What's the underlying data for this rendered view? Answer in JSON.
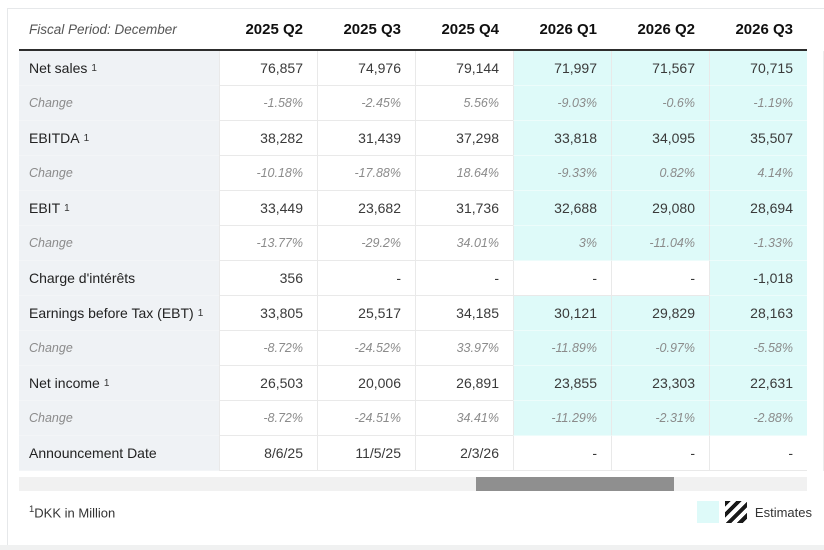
{
  "header": {
    "fiscal_period_label": "Fiscal Period: December",
    "columns": [
      "2025 Q2",
      "2025 Q3",
      "2025 Q4",
      "2026 Q1",
      "2026 Q2",
      "2026 Q3"
    ]
  },
  "table": {
    "rows": [
      {
        "label": "Net sales",
        "sup": "1",
        "style": "main",
        "values": [
          "76,857",
          "74,976",
          "79,144",
          "71,997",
          "71,567",
          "70,715"
        ],
        "estimates": [
          false,
          false,
          false,
          true,
          true,
          true
        ]
      },
      {
        "label": "Change",
        "style": "change",
        "values": [
          "-1.58%",
          "-2.45%",
          "5.56%",
          "-9.03%",
          "-0.6%",
          "-1.19%"
        ],
        "estimates": [
          false,
          false,
          false,
          true,
          true,
          true
        ]
      },
      {
        "label": "EBITDA",
        "sup": "1",
        "style": "main",
        "values": [
          "38,282",
          "31,439",
          "37,298",
          "33,818",
          "34,095",
          "35,507"
        ],
        "estimates": [
          false,
          false,
          false,
          true,
          true,
          true
        ]
      },
      {
        "label": "Change",
        "style": "change",
        "values": [
          "-10.18%",
          "-17.88%",
          "18.64%",
          "-9.33%",
          "0.82%",
          "4.14%"
        ],
        "estimates": [
          false,
          false,
          false,
          true,
          true,
          true
        ]
      },
      {
        "label": "EBIT",
        "sup": "1",
        "style": "main",
        "values": [
          "33,449",
          "23,682",
          "31,736",
          "32,688",
          "29,080",
          "28,694"
        ],
        "estimates": [
          false,
          false,
          false,
          true,
          true,
          true
        ]
      },
      {
        "label": "Change",
        "style": "change",
        "values": [
          "-13.77%",
          "-29.2%",
          "34.01%",
          "3%",
          "-11.04%",
          "-1.33%"
        ],
        "estimates": [
          false,
          false,
          false,
          true,
          true,
          true
        ]
      },
      {
        "label": "Charge d'intérêts",
        "style": "main",
        "values": [
          "356",
          "-",
          "-",
          "-",
          "-",
          "-1,018"
        ],
        "estimates": [
          false,
          false,
          false,
          false,
          false,
          true
        ]
      },
      {
        "label": "Earnings before Tax (EBT)",
        "sup": "1",
        "style": "main",
        "values": [
          "33,805",
          "25,517",
          "34,185",
          "30,121",
          "29,829",
          "28,163"
        ],
        "estimates": [
          false,
          false,
          false,
          true,
          true,
          true
        ]
      },
      {
        "label": "Change",
        "style": "change",
        "values": [
          "-8.72%",
          "-24.52%",
          "33.97%",
          "-11.89%",
          "-0.97%",
          "-5.58%"
        ],
        "estimates": [
          false,
          false,
          false,
          true,
          true,
          true
        ]
      },
      {
        "label": "Net income",
        "sup": "1",
        "style": "main",
        "values": [
          "26,503",
          "20,006",
          "26,891",
          "23,855",
          "23,303",
          "22,631"
        ],
        "estimates": [
          false,
          false,
          false,
          true,
          true,
          true
        ]
      },
      {
        "label": "Change",
        "style": "change",
        "values": [
          "-8.72%",
          "-24.51%",
          "34.41%",
          "-11.29%",
          "-2.31%",
          "-2.88%"
        ],
        "estimates": [
          false,
          false,
          false,
          true,
          true,
          true
        ]
      },
      {
        "label": "Announcement Date",
        "style": "main",
        "values": [
          "8/6/25",
          "11/5/25",
          "2/3/26",
          "-",
          "-",
          "-"
        ],
        "estimates": [
          false,
          false,
          false,
          false,
          false,
          false
        ]
      }
    ]
  },
  "footer": {
    "note_sup": "1",
    "note_text": "DKK in Million",
    "legend_label": "Estimates"
  },
  "colors": {
    "estimate_bg": "#defaf9"
  }
}
